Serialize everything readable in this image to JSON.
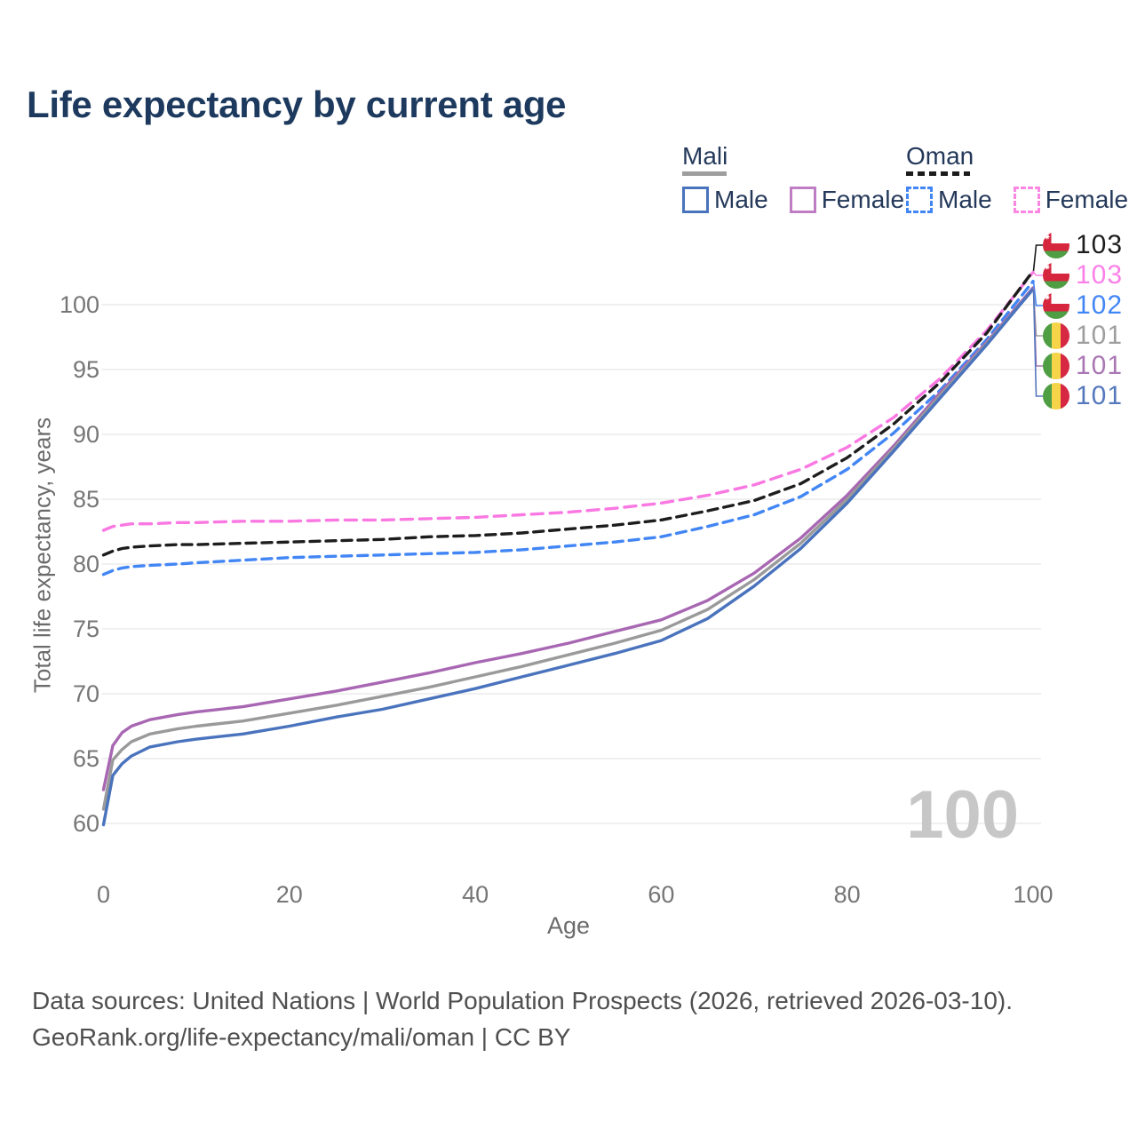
{
  "title": "Life expectancy by current age",
  "legend": {
    "groups": [
      {
        "name": "Mali",
        "line_style": "solid",
        "underline_color": "#9e9e9e",
        "entries": [
          {
            "label": "Male",
            "color": "#4a73bd",
            "dashed": false
          },
          {
            "label": "Female",
            "color": "#bf7ec3",
            "dashed": false
          }
        ]
      },
      {
        "name": "Oman",
        "line_style": "dashed",
        "underline_color": "#1c1c1c",
        "entries": [
          {
            "label": "Male",
            "color": "#4286f5",
            "dashed": true
          },
          {
            "label": "Female",
            "color": "#fb87e3",
            "dashed": true
          }
        ]
      }
    ]
  },
  "axes": {
    "x": {
      "title": "Age",
      "min": 0,
      "max": 100,
      "ticks": [
        0,
        20,
        40,
        60,
        80,
        100
      ]
    },
    "y": {
      "title": "Total life expectancy, years",
      "min": 60,
      "max": 100,
      "ticks": [
        60,
        65,
        70,
        75,
        80,
        85,
        90,
        95,
        100
      ]
    }
  },
  "chart_data": {
    "type": "line",
    "title": "Life expectancy by current age",
    "xlabel": "Age",
    "ylabel": "Total life expectancy, years",
    "xlim": [
      0,
      100
    ],
    "ylim": [
      60,
      100
    ],
    "grid": "horizontal-only",
    "legend_position": "top-right",
    "x_ages": [
      0,
      1,
      2,
      3,
      5,
      8,
      10,
      15,
      20,
      25,
      30,
      35,
      40,
      45,
      50,
      55,
      60,
      65,
      70,
      75,
      80,
      85,
      90,
      95,
      100
    ],
    "series": [
      {
        "name": "Oman Female",
        "country": "Oman",
        "sex": "female",
        "color": "#f978e2",
        "dash": "13 8",
        "values": [
          82.6,
          82.9,
          83.0,
          83.1,
          83.1,
          83.2,
          83.2,
          83.3,
          83.3,
          83.4,
          83.4,
          83.5,
          83.6,
          83.8,
          84.0,
          84.3,
          84.7,
          85.3,
          86.1,
          87.3,
          89.0,
          91.3,
          94.3,
          98.0,
          102.5
        ]
      },
      {
        "name": "Oman (both sexes)",
        "country": "Oman",
        "sex": "both",
        "color": "#1d1d1d",
        "dash": "11 7",
        "values": [
          80.7,
          81.0,
          81.2,
          81.3,
          81.4,
          81.5,
          81.5,
          81.6,
          81.7,
          81.8,
          81.9,
          82.1,
          82.2,
          82.4,
          82.7,
          83.0,
          83.4,
          84.1,
          84.9,
          86.2,
          88.2,
          90.8,
          94.0,
          97.8,
          102.6
        ]
      },
      {
        "name": "Oman Male",
        "country": "Oman",
        "sex": "male",
        "color": "#4286f5",
        "dash": "11 7",
        "values": [
          79.2,
          79.5,
          79.7,
          79.8,
          79.9,
          80.0,
          80.1,
          80.3,
          80.5,
          80.6,
          80.7,
          80.8,
          80.9,
          81.1,
          81.4,
          81.7,
          82.1,
          82.9,
          83.8,
          85.2,
          87.3,
          90.1,
          93.4,
          97.3,
          101.8
        ]
      },
      {
        "name": "Mali Female",
        "country": "Mali",
        "sex": "female",
        "color": "#a867b2",
        "dash": null,
        "values": [
          62.6,
          66.0,
          67.0,
          67.5,
          68.0,
          68.4,
          68.6,
          69.0,
          69.6,
          70.2,
          70.9,
          71.6,
          72.4,
          73.1,
          73.9,
          74.8,
          75.7,
          77.2,
          79.3,
          82.0,
          85.3,
          89.1,
          93.2,
          97.1,
          101.3
        ]
      },
      {
        "name": "Mali (both sexes)",
        "country": "Mali",
        "sex": "both",
        "color": "#9a9a9a",
        "dash": null,
        "values": [
          61.1,
          64.9,
          65.7,
          66.3,
          66.9,
          67.3,
          67.5,
          67.9,
          68.5,
          69.1,
          69.8,
          70.5,
          71.3,
          72.1,
          73.0,
          73.9,
          74.9,
          76.5,
          78.8,
          81.6,
          85.0,
          88.9,
          93.0,
          97.0,
          101.2
        ]
      },
      {
        "name": "Mali Male",
        "country": "Mali",
        "sex": "male",
        "color": "#4a73bd",
        "dash": null,
        "values": [
          59.9,
          63.7,
          64.6,
          65.2,
          65.9,
          66.3,
          66.5,
          66.9,
          67.5,
          68.2,
          68.8,
          69.6,
          70.4,
          71.3,
          72.2,
          73.1,
          74.1,
          75.8,
          78.3,
          81.2,
          84.7,
          88.7,
          92.8,
          96.9,
          101.2
        ]
      }
    ],
    "end_labels": [
      {
        "value": "103",
        "color": "#1d1d1d",
        "flag": "oman",
        "series": "Oman (both sexes)"
      },
      {
        "value": "103",
        "color": "#fb80e8",
        "flag": "oman",
        "series": "Oman Female"
      },
      {
        "value": "102",
        "color": "#4286f5",
        "flag": "oman",
        "series": "Oman Male"
      },
      {
        "value": "101",
        "color": "#9e9e9e",
        "flag": "mali",
        "series": "Mali (both sexes)"
      },
      {
        "value": "101",
        "color": "#aa77b4",
        "flag": "mali",
        "series": "Mali Female"
      },
      {
        "value": "101",
        "color": "#5578bd",
        "flag": "mali",
        "series": "Mali Male"
      }
    ]
  },
  "watermark": "100",
  "footer": {
    "line1": "Data sources: United Nations | World Population Prospects (2026, retrieved 2026-03-10).",
    "line2": "GeoRank.org/life-expectancy/mali/oman | CC BY"
  },
  "colors": {
    "title_text": "#1d3a5e",
    "legend_text": "#24395a",
    "tick_text": "#767676",
    "axis_title_text": "#6b6b6b",
    "gridline": "#e6e6e6",
    "watermark": "#c7c7c7",
    "footer_text": "#4f4f4f",
    "mali_flag": {
      "green": "#4f9e43",
      "yellow": "#f6d44a",
      "red": "#d62843"
    },
    "oman_flag": {
      "white": "#ffffff",
      "red": "#d6263e",
      "green": "#4f9e43"
    }
  }
}
